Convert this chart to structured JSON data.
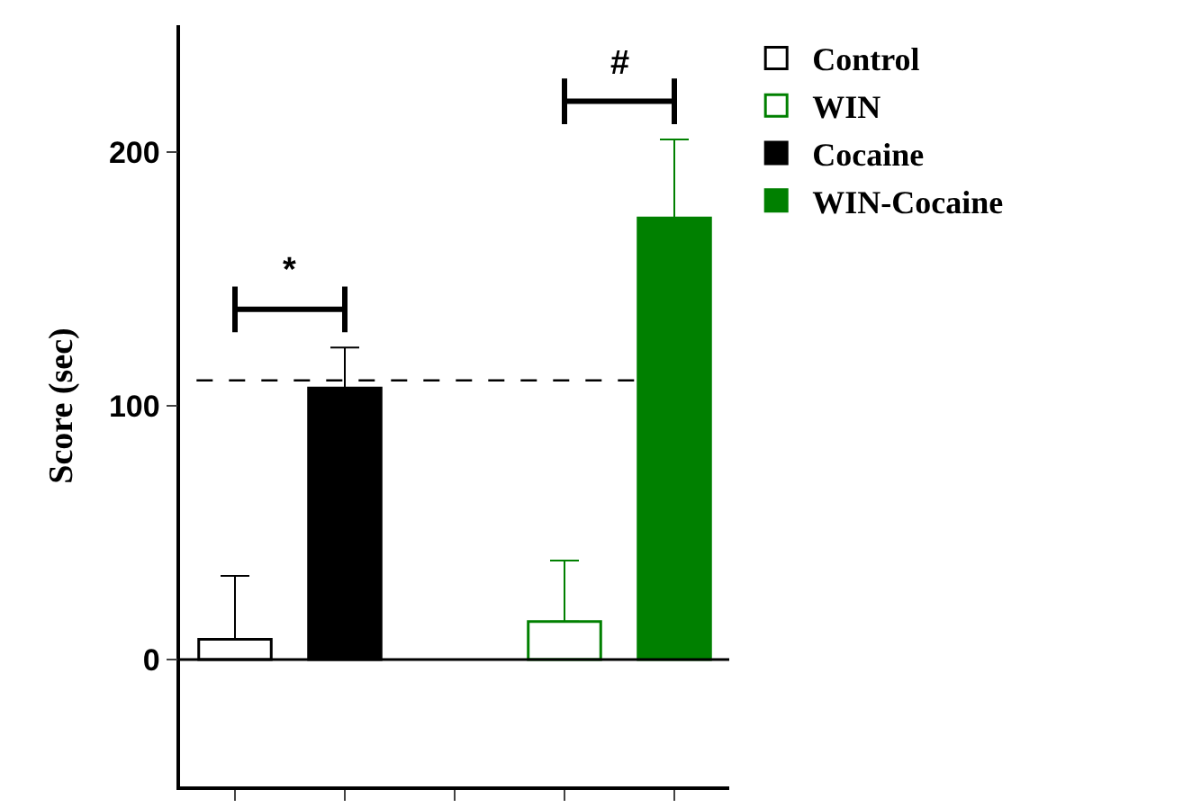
{
  "chart_data": {
    "type": "bar",
    "ylabel": "Score (sec)",
    "categories": [
      null,
      null,
      null,
      null,
      null
    ],
    "series": [
      {
        "name": "Control",
        "color": "#000000",
        "colors": [
          "#ffffff",
          null,
          null,
          null,
          null
        ],
        "values": [
          8,
          null,
          null,
          null,
          null
        ],
        "errors": [
          [
            8,
            33
          ],
          null,
          null,
          null,
          null
        ]
      },
      {
        "name": "WIN",
        "color": "#008000",
        "colors": [
          null,
          null,
          null,
          "#ffffff",
          null
        ],
        "values": [
          null,
          null,
          null,
          15,
          null
        ],
        "errors": [
          null,
          null,
          null,
          [
            15,
            39
          ],
          null
        ]
      },
      {
        "name": "Cocaine",
        "color": "#000000",
        "values": [
          null,
          107,
          null,
          null,
          null
        ],
        "errors": [
          null,
          [
            107,
            123
          ],
          null,
          null,
          null
        ]
      },
      {
        "name": "WIN-Cocaine",
        "color": "#008000",
        "values": [
          null,
          null,
          null,
          null,
          174
        ],
        "errors": [
          null,
          null,
          null,
          null,
          [
            174,
            205
          ]
        ]
      }
    ],
    "ylim": [
      -50,
      250
    ],
    "yticks": [
      0,
      100,
      200
    ],
    "legend": "top right",
    "tick_labels": "y",
    "ref_lines": [
      {
        "axis": "y",
        "value": 110,
        "line_style": "dashed",
        "color": "#000000"
      },
      {
        "axis": "y",
        "value": 0,
        "line_style": "solid",
        "color": "#000000"
      }
    ],
    "annotations": [
      "*",
      "#"
    ]
  }
}
